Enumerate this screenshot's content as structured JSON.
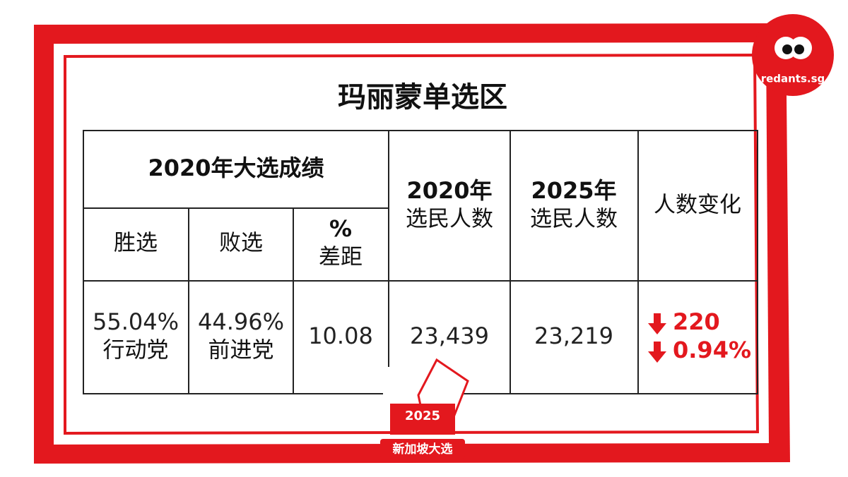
{
  "title": "玛丽蒙单选区",
  "logo": "redants.sg",
  "badge": {
    "year": "2025",
    "label": "新加坡大选"
  },
  "table": {
    "header": {
      "group": "2020年大选成绩",
      "win": "胜选",
      "lose": "败选",
      "margin": [
        "%",
        "差距"
      ],
      "voters_2020": [
        "2020年",
        "选民人数"
      ],
      "voters_2025": [
        "2025年",
        "选民人数"
      ],
      "change": "人数变化"
    },
    "row": {
      "win": [
        "55.04%",
        "行动党"
      ],
      "lose": [
        "44.96%",
        "前进党"
      ],
      "margin": "10.08",
      "voters_2020": "23,439",
      "voters_2025": "23,219",
      "change": [
        "220",
        "0.94%"
      ]
    }
  }
}
